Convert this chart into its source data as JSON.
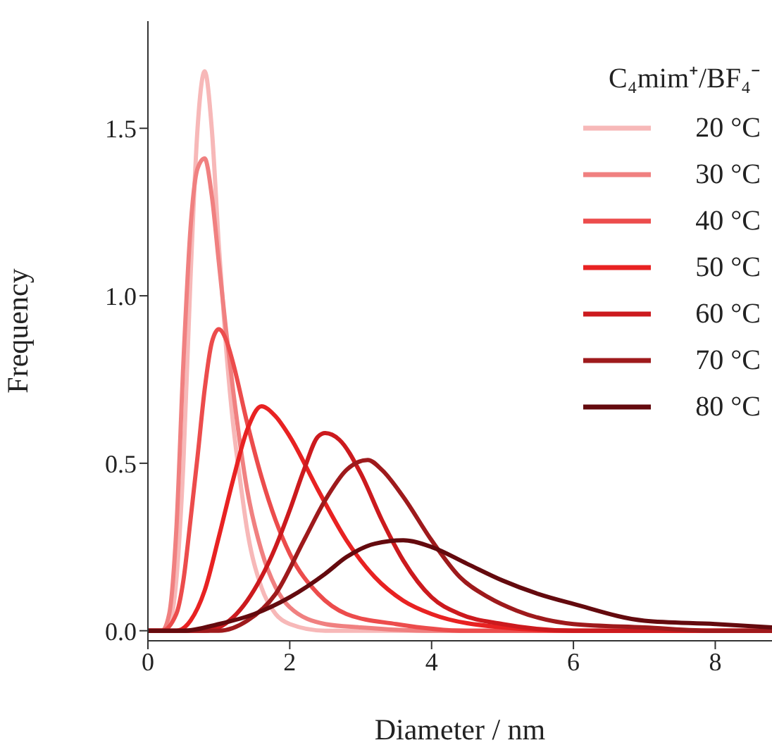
{
  "chart_data": {
    "type": "line",
    "xlabel": "Diameter / nm",
    "ylabel": "Frequency",
    "legend_title": "C₄mim⁺/BF₄⁻",
    "legend": "top right",
    "marker": "none",
    "line_style": "solid",
    "xlim": [
      0,
      8.8
    ],
    "xticks": [
      0,
      2,
      4,
      6,
      8
    ],
    "ylim": [
      -0.03,
      1.82
    ],
    "yticks": [
      {
        "value": 0,
        "label": "0.0"
      },
      {
        "value": 0.5,
        "label": "0.5"
      },
      {
        "value": 1,
        "label": "1.0"
      },
      {
        "value": 1.5,
        "label": "1.5"
      }
    ],
    "series": [
      {
        "name": "20 °C",
        "color": "#f7b8b8",
        "x": [
          0,
          0.2,
          0.3,
          0.4,
          0.5,
          0.6,
          0.7,
          0.8,
          0.9,
          1.0,
          1.1,
          1.2,
          1.3,
          1.4,
          1.6,
          1.8,
          2.0,
          2.5,
          8.8
        ],
        "values": [
          0,
          0,
          0.02,
          0.15,
          0.5,
          1.05,
          1.5,
          1.67,
          1.5,
          1.15,
          0.85,
          0.62,
          0.45,
          0.3,
          0.13,
          0.05,
          0.02,
          0,
          0
        ]
      },
      {
        "name": "30 °C",
        "color": "#f08080",
        "x": [
          0,
          0.2,
          0.3,
          0.4,
          0.5,
          0.6,
          0.7,
          0.8,
          0.9,
          1.0,
          1.1,
          1.2,
          1.4,
          1.6,
          1.8,
          2.0,
          2.5,
          3.0,
          4.0,
          8.8
        ],
        "values": [
          0,
          0,
          0.05,
          0.3,
          0.8,
          1.2,
          1.38,
          1.41,
          1.3,
          1.1,
          0.9,
          0.72,
          0.42,
          0.24,
          0.13,
          0.07,
          0.02,
          0.01,
          0,
          0
        ]
      },
      {
        "name": "40 °C",
        "color": "#ec4c4c",
        "x": [
          0,
          0.2,
          0.4,
          0.5,
          0.6,
          0.7,
          0.8,
          0.9,
          1.0,
          1.1,
          1.2,
          1.4,
          1.6,
          1.8,
          2.0,
          2.4,
          2.8,
          3.5,
          4.5,
          8.8
        ],
        "values": [
          0,
          0,
          0.05,
          0.15,
          0.33,
          0.52,
          0.72,
          0.86,
          0.9,
          0.87,
          0.8,
          0.62,
          0.46,
          0.33,
          0.23,
          0.11,
          0.05,
          0.02,
          0,
          0
        ]
      },
      {
        "name": "50 °C",
        "color": "#e82222",
        "x": [
          0,
          0.4,
          0.6,
          0.8,
          1.0,
          1.2,
          1.4,
          1.6,
          1.8,
          2.0,
          2.4,
          2.8,
          3.2,
          3.6,
          4.0,
          5.0,
          6.0,
          8.8
        ],
        "values": [
          0,
          0,
          0.03,
          0.12,
          0.28,
          0.45,
          0.6,
          0.67,
          0.64,
          0.58,
          0.42,
          0.27,
          0.16,
          0.09,
          0.05,
          0.01,
          0,
          0
        ]
      },
      {
        "name": "60 °C",
        "color": "#cc1a1e",
        "x": [
          0,
          0.8,
          1.0,
          1.2,
          1.4,
          1.6,
          1.8,
          2.0,
          2.2,
          2.4,
          2.5,
          2.7,
          3.0,
          3.3,
          3.6,
          4.0,
          4.4,
          5.0,
          6.0,
          8.8
        ],
        "values": [
          0,
          0,
          0.01,
          0.04,
          0.09,
          0.16,
          0.25,
          0.36,
          0.48,
          0.58,
          0.59,
          0.57,
          0.47,
          0.33,
          0.21,
          0.1,
          0.05,
          0.02,
          0,
          0
        ]
      },
      {
        "name": "70 °C",
        "color": "#9e1a1c",
        "x": [
          0,
          1.0,
          1.4,
          1.8,
          2.2,
          2.5,
          2.8,
          3.1,
          3.3,
          3.6,
          4.0,
          4.4,
          4.8,
          5.2,
          6.0,
          7.0,
          8.0,
          8.8
        ],
        "values": [
          0,
          0,
          0.03,
          0.11,
          0.27,
          0.39,
          0.48,
          0.51,
          0.48,
          0.4,
          0.27,
          0.16,
          0.1,
          0.06,
          0.02,
          0.01,
          0,
          0
        ]
      },
      {
        "name": "80 °C",
        "color": "#640a0e",
        "x": [
          0,
          0.5,
          1.0,
          1.5,
          2.0,
          2.5,
          2.8,
          3.2,
          3.6,
          4.0,
          4.5,
          5.0,
          5.5,
          6.0,
          7.0,
          8.0,
          8.8
        ],
        "values": [
          0,
          0,
          0.02,
          0.05,
          0.1,
          0.17,
          0.22,
          0.26,
          0.27,
          0.25,
          0.2,
          0.15,
          0.11,
          0.08,
          0.03,
          0.02,
          0.01
        ]
      }
    ]
  }
}
